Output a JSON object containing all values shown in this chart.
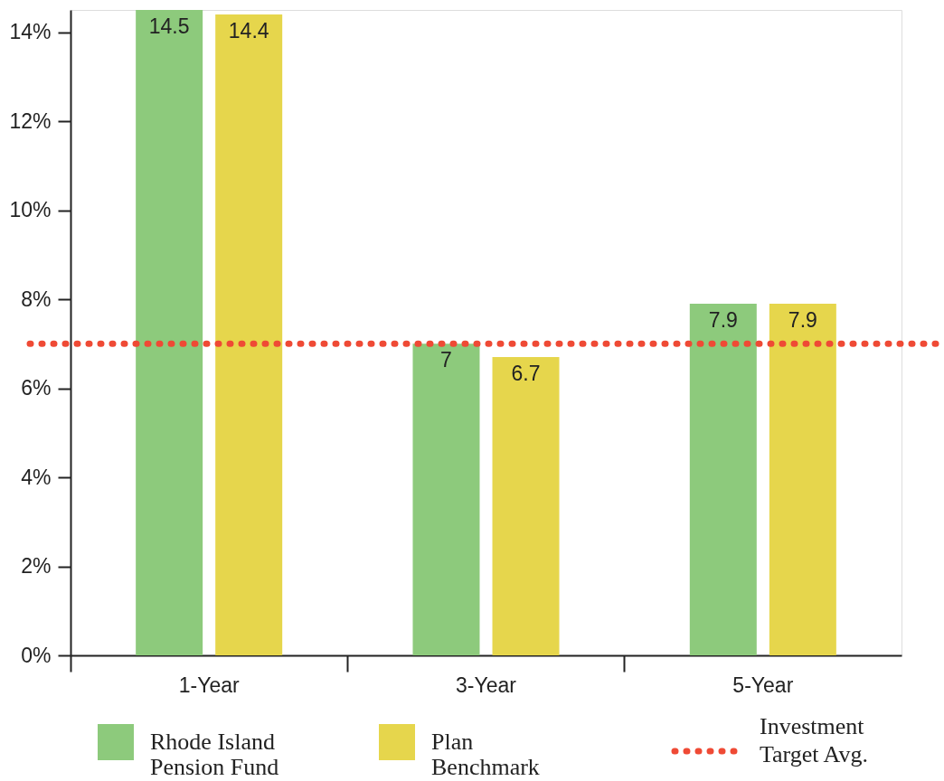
{
  "chart_data": {
    "type": "bar",
    "categories": [
      "1-Year",
      "3-Year",
      "5-Year"
    ],
    "series": [
      {
        "name": "Rhode Island Pension Fund",
        "color": "#8dca7c",
        "values": [
          14.5,
          7,
          7.9
        ]
      },
      {
        "name": "Plan Benchmark",
        "color": "#e6d64c",
        "values": [
          14.4,
          6.7,
          7.9
        ]
      }
    ],
    "ylim": [
      0,
      14.5
    ],
    "yticks": [
      {
        "value": 0,
        "label": "0%"
      },
      {
        "value": 2,
        "label": "2%"
      },
      {
        "value": 4,
        "label": "4%"
      },
      {
        "value": 6,
        "label": "6%"
      },
      {
        "value": 8,
        "label": "8%"
      },
      {
        "value": 10,
        "label": "10%"
      },
      {
        "value": 12,
        "label": "12%"
      },
      {
        "value": 14,
        "label": "14%"
      }
    ],
    "ref_lines": [
      {
        "axis": "y",
        "value": 7,
        "label": "Investment Target Avg.",
        "color": "#ef4a35",
        "line_style": "dotted"
      }
    ],
    "data_labels": true,
    "grid": false,
    "legend": "bottom"
  }
}
